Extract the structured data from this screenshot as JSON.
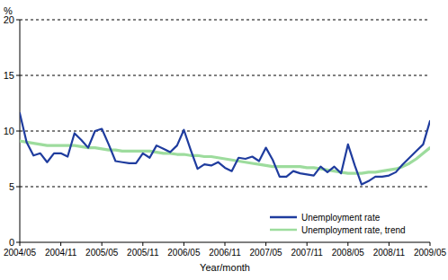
{
  "chart_data": {
    "type": "line",
    "y_label": "%",
    "x_label": "Year/month",
    "categories": [
      "2004/05",
      null,
      null,
      null,
      null,
      null,
      "2004/11",
      null,
      null,
      null,
      null,
      null,
      "2005/05",
      null,
      null,
      null,
      null,
      null,
      "2005/11",
      null,
      null,
      null,
      null,
      null,
      "2006/05",
      null,
      null,
      null,
      null,
      null,
      "2006/11",
      null,
      null,
      null,
      null,
      null,
      "2007/05",
      null,
      null,
      null,
      null,
      null,
      "2007/11",
      null,
      null,
      null,
      null,
      null,
      "2008/05",
      null,
      null,
      null,
      null,
      null,
      "2008/11",
      null,
      null,
      null,
      null,
      null,
      "2009/05"
    ],
    "series": [
      {
        "name": "Unemployment rate",
        "color": "#1f3c9e",
        "values": [
          11.6,
          9.0,
          7.8,
          8.0,
          7.2,
          8.0,
          8.0,
          7.7,
          9.8,
          9.2,
          8.5,
          10.0,
          10.2,
          8.8,
          7.3,
          7.2,
          7.1,
          7.1,
          8.0,
          7.6,
          8.7,
          8.4,
          8.1,
          8.7,
          10.1,
          8.3,
          6.6,
          7.0,
          6.9,
          7.2,
          6.7,
          6.4,
          7.6,
          7.5,
          7.7,
          7.3,
          8.5,
          7.4,
          5.9,
          5.9,
          6.4,
          6.2,
          6.1,
          6.0,
          6.8,
          6.3,
          6.8,
          6.2,
          8.8,
          6.9,
          5.2,
          5.5,
          5.9,
          5.9,
          6.0,
          6.3,
          7.0,
          7.6,
          8.2,
          8.8,
          10.9
        ]
      },
      {
        "name": "Unemployment rate, trend",
        "color": "#9ddc9d",
        "values": [
          9.1,
          9.0,
          8.9,
          8.8,
          8.7,
          8.7,
          8.7,
          8.7,
          8.7,
          8.6,
          8.5,
          8.5,
          8.4,
          8.3,
          8.3,
          8.2,
          8.2,
          8.2,
          8.2,
          8.2,
          8.1,
          8.0,
          8.0,
          7.9,
          7.9,
          7.8,
          7.8,
          7.7,
          7.7,
          7.6,
          7.5,
          7.4,
          7.3,
          7.2,
          7.1,
          7.0,
          6.9,
          6.8,
          6.8,
          6.8,
          6.8,
          6.8,
          6.7,
          6.7,
          6.6,
          6.5,
          6.4,
          6.3,
          6.2,
          6.2,
          6.2,
          6.3,
          6.3,
          6.4,
          6.5,
          6.6,
          6.8,
          7.1,
          7.5,
          8.0,
          8.5
        ]
      }
    ],
    "ylim": [
      0,
      20
    ],
    "yticks": [
      0,
      5,
      10,
      15,
      20
    ],
    "grid": true,
    "legend": "lower-right"
  }
}
